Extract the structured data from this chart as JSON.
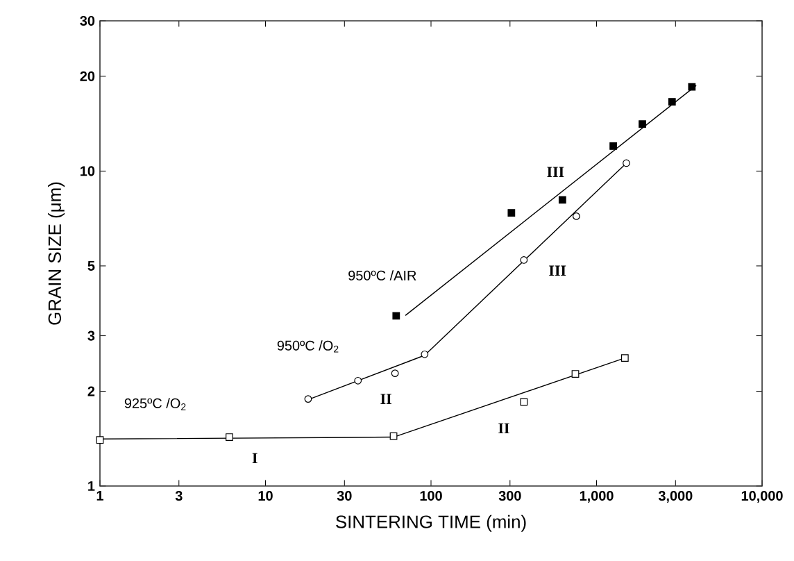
{
  "chart_data": {
    "type": "scatter",
    "xlabel": "SINTERING TIME  (min)",
    "ylabel": "GRAIN SIZE  (μm)",
    "log": "xy",
    "grid": false,
    "legend": false,
    "xlim": [
      1,
      10000
    ],
    "ylim": [
      1,
      30
    ],
    "xticks": [
      1,
      3,
      10,
      30,
      100,
      300,
      {
        "value": 1000,
        "label": "1,000"
      },
      {
        "value": 3000,
        "label": "3,000"
      },
      {
        "value": 10000,
        "label": "10,000"
      }
    ],
    "yticks": [
      1,
      2,
      3,
      5,
      10,
      20,
      30
    ],
    "series": [
      {
        "name": "950ºC /AIR",
        "color": "#000000",
        "marker": "square",
        "x": [
          61.6,
          306,
          622,
          1262,
          1892,
          2858,
          3766
        ],
        "values": [
          3.47,
          7.37,
          8.1,
          12.0,
          14.1,
          16.6,
          18.5
        ]
      },
      {
        "name": "950ºC /O$_{2}$",
        "color": "#ffffff",
        "marker": "circle",
        "x": [
          18.1,
          36.2,
          60.6,
          91.5,
          364,
          755,
          1514
        ],
        "values": [
          1.89,
          2.16,
          2.28,
          2.62,
          5.22,
          7.19,
          10.6
        ]
      },
      {
        "name": "925ºC /O$_{2}$",
        "color": "#ffffff",
        "marker": "square",
        "x": [
          1,
          6.05,
          59.4,
          364,
          745,
          1483
        ],
        "values": [
          1.4,
          1.43,
          1.44,
          1.85,
          2.27,
          2.55
        ]
      },
      {
        "type": "line",
        "color": "#000000",
        "marker": "none",
        "x": [
          70,
          4000
        ],
        "values": [
          3.48,
          18.7
        ]
      },
      {
        "type": "line",
        "color": "#000000",
        "marker": "none",
        "x": [
          18.1,
          91.5,
          1514
        ],
        "values": [
          1.88,
          2.6,
          10.6
        ]
      },
      {
        "type": "line",
        "color": "#000000",
        "marker": "none",
        "x": [
          1,
          59.4,
          1483
        ],
        "values": [
          1.41,
          1.43,
          2.55
        ]
      }
    ],
    "annotations": [
      "III",
      "III",
      "II",
      "II",
      "I"
    ]
  }
}
